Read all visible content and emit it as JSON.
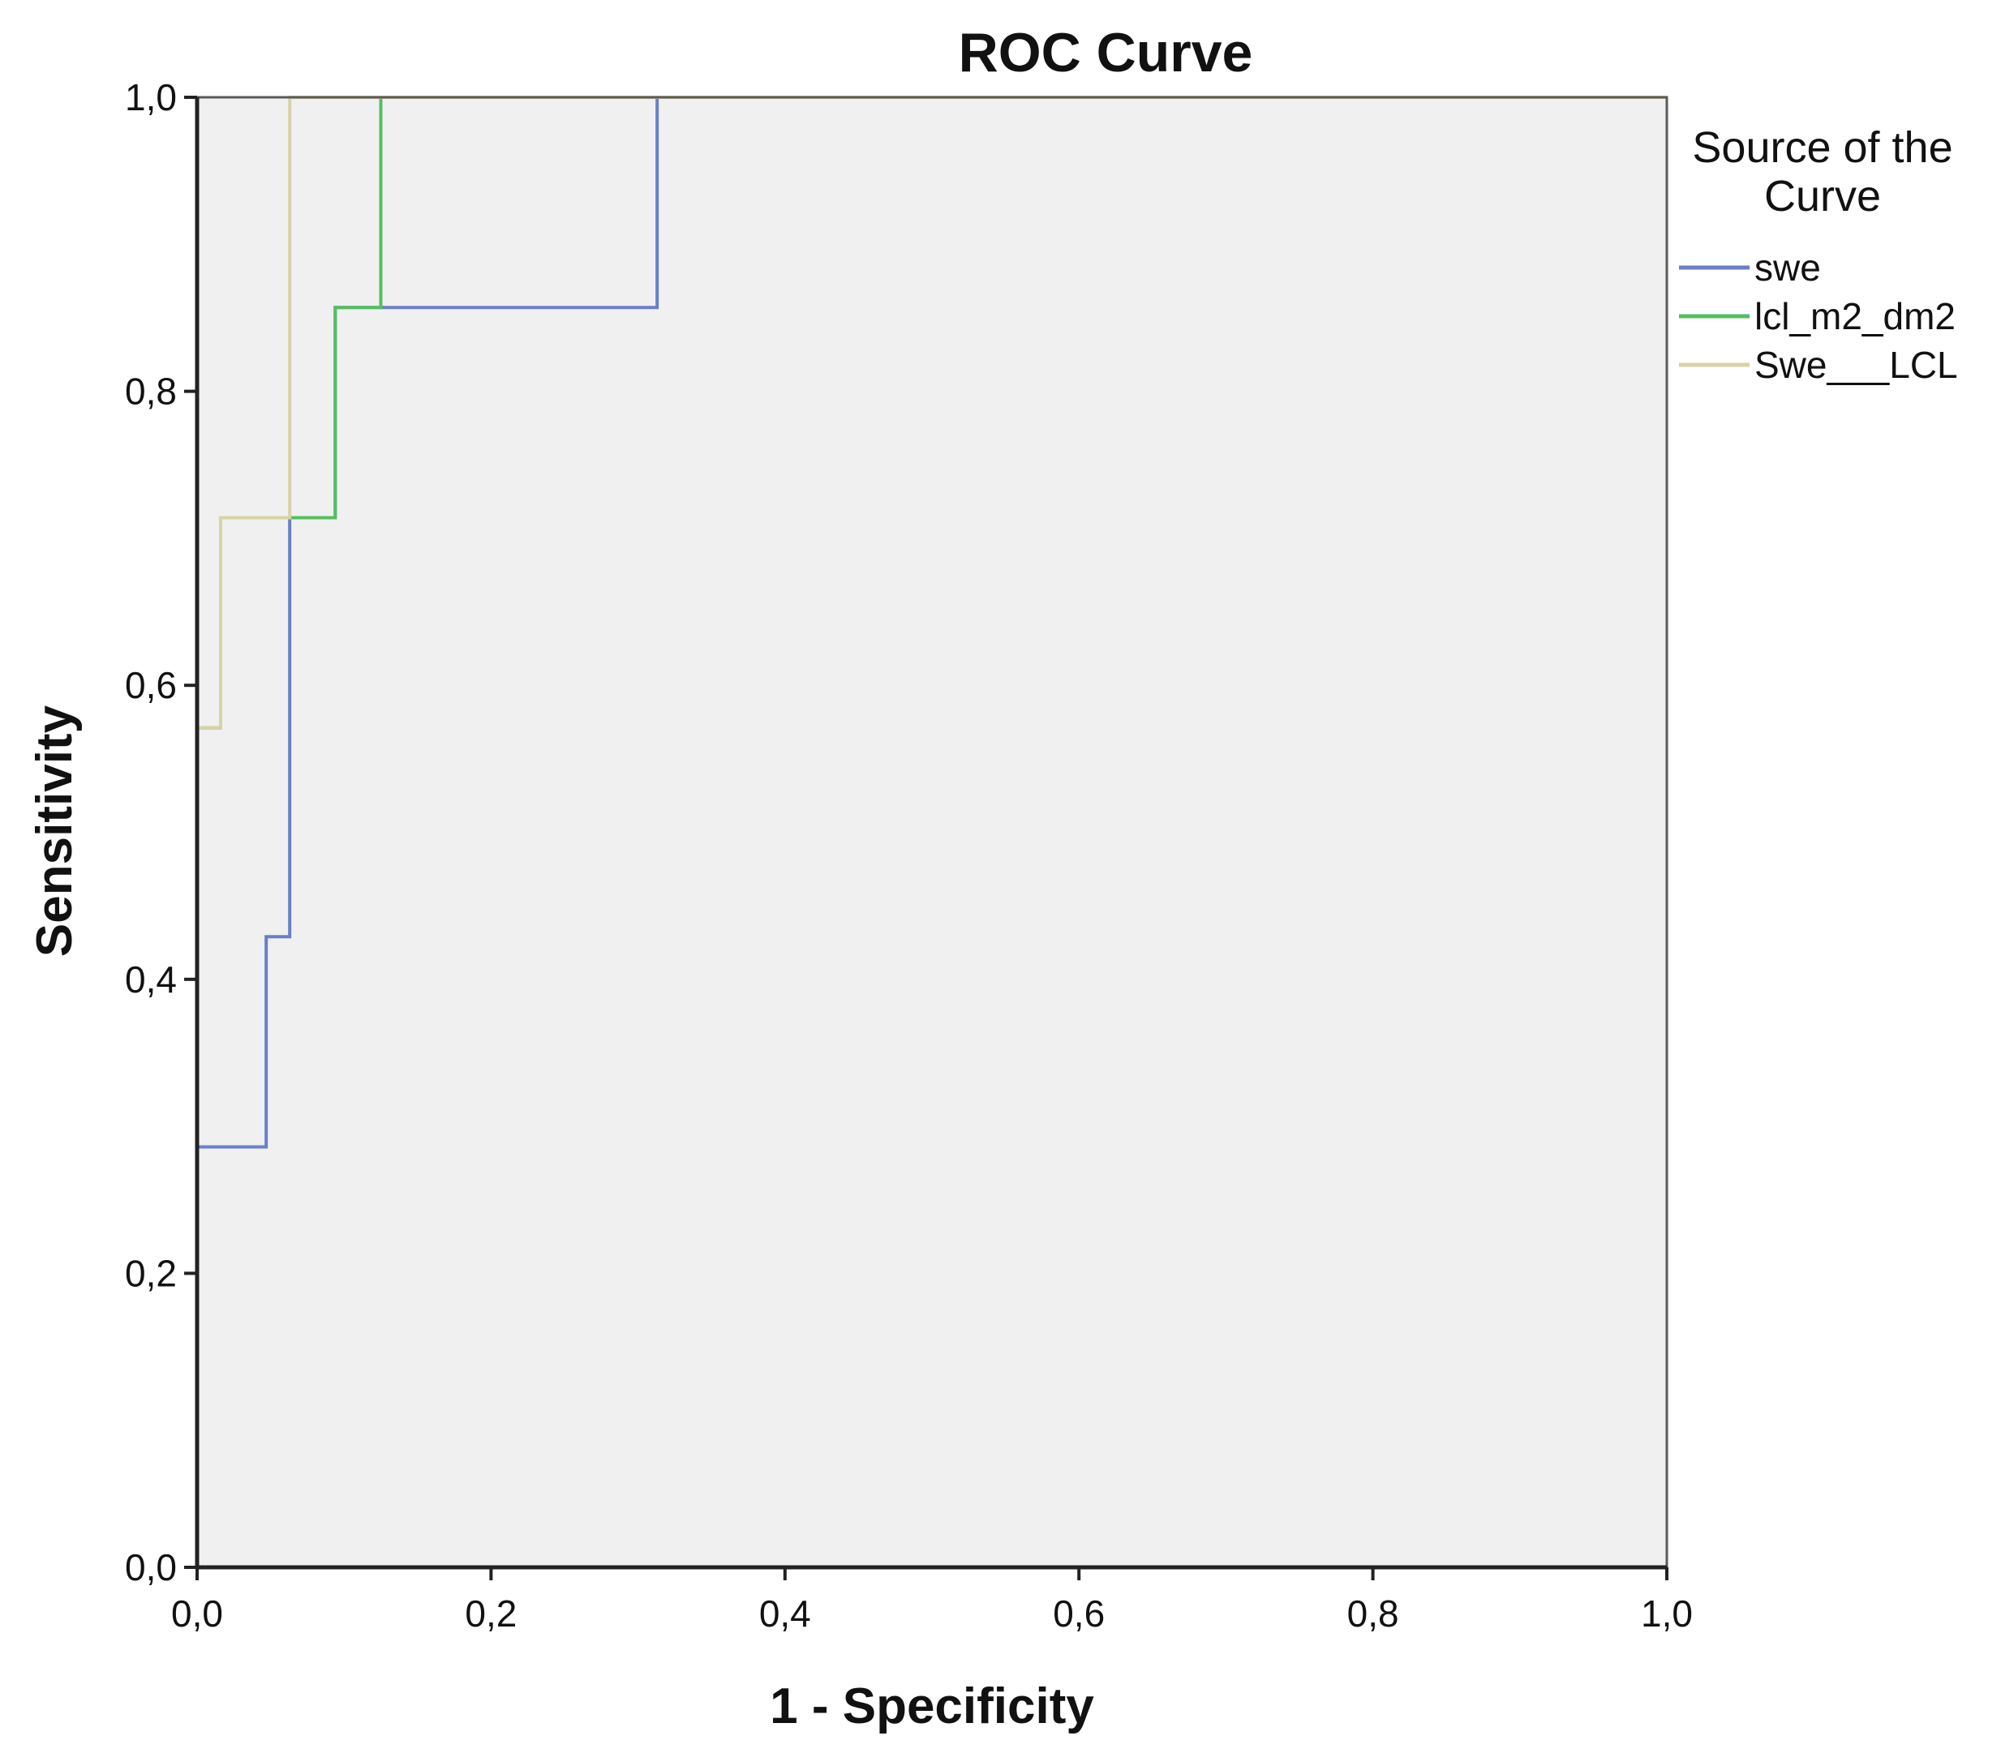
{
  "chart_data": {
    "type": "line",
    "title": "ROC Curve",
    "xlabel": "1 - Specificity",
    "ylabel": "Sensitivity",
    "xlim": [
      0,
      1
    ],
    "ylim": [
      0,
      1
    ],
    "x_ticks": [
      "0,0",
      "0,2",
      "0,4",
      "0,6",
      "0,8",
      "1,0"
    ],
    "y_ticks": [
      "0,0",
      "0,2",
      "0,4",
      "0,6",
      "0,8",
      "1,0"
    ],
    "grid": false,
    "background_color": "#f0f0f0",
    "legend": {
      "title": "Source of the Curve",
      "title_lines": [
        "Source of the",
        "Curve"
      ],
      "position": "right"
    },
    "series": [
      {
        "name": "swe",
        "color": "#6a7fc6",
        "x": [
          0.0,
          0.0,
          0.047,
          0.047,
          0.063,
          0.063,
          0.094,
          0.094,
          0.313,
          0.313,
          1.0
        ],
        "y": [
          0.0,
          0.286,
          0.286,
          0.429,
          0.429,
          0.714,
          0.714,
          0.857,
          0.857,
          1.0,
          1.0
        ]
      },
      {
        "name": "lcl_m2_dm2",
        "color": "#55bf5f",
        "x": [
          0.0,
          0.0,
          0.016,
          0.016,
          0.094,
          0.094,
          0.125,
          0.125,
          1.0
        ],
        "y": [
          0.0,
          0.571,
          0.571,
          0.714,
          0.714,
          0.857,
          0.857,
          1.0,
          1.0
        ]
      },
      {
        "name": "Swe___LCL",
        "color": "#d8d3a4",
        "x": [
          0.0,
          0.0,
          0.016,
          0.016,
          0.063,
          0.063,
          1.0
        ],
        "y": [
          0.0,
          0.571,
          0.571,
          0.714,
          0.714,
          1.0,
          1.0
        ]
      }
    ]
  }
}
